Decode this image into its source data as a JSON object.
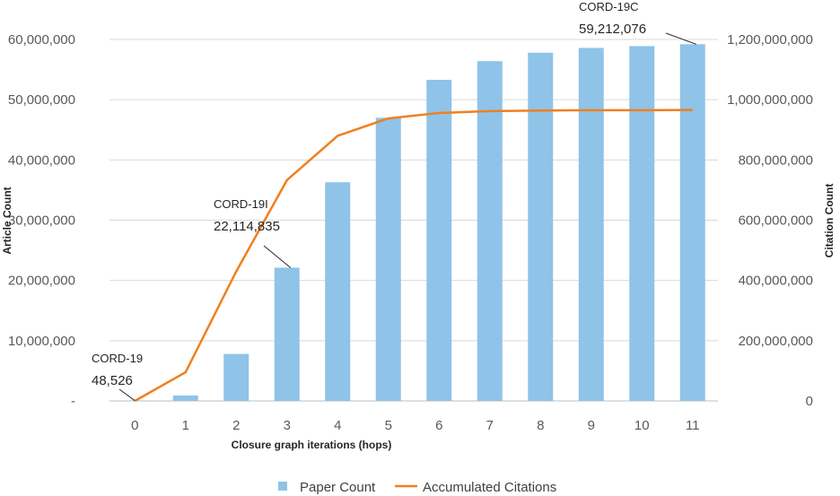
{
  "chart_data": {
    "type": "bar",
    "categories": [
      "0",
      "1",
      "2",
      "3",
      "4",
      "5",
      "6",
      "7",
      "8",
      "9",
      "10",
      "11"
    ],
    "series": [
      {
        "name": "Paper Count",
        "type": "bar",
        "axis": "left",
        "color": "#8fc3e8",
        "values": [
          48526,
          900000,
          7800000,
          22114835,
          36300000,
          47000000,
          53300000,
          56400000,
          57800000,
          58600000,
          58900000,
          59212076
        ]
      },
      {
        "name": "Accumulated Citations",
        "type": "line",
        "axis": "right",
        "color": "#f07f1f",
        "values": [
          0,
          95000000,
          430000000,
          733000000,
          880000000,
          938000000,
          956000000,
          962000000,
          964000000,
          965000000,
          965000000,
          966000000
        ]
      }
    ],
    "xlabel": "Closure graph iterations (hops)",
    "ylabel": "Article Count",
    "y2label": "Citation Count",
    "ylim": [
      0,
      60000000
    ],
    "y2lim": [
      0,
      1200000000
    ],
    "yticks": [
      0,
      10000000,
      20000000,
      30000000,
      40000000,
      50000000,
      60000000
    ],
    "ytick_labels": [
      "-",
      "10,000,000",
      "20,000,000",
      "30,000,000",
      "40,000,000",
      "50,000,000",
      "60,000,000"
    ],
    "y2ticks": [
      0,
      200000000,
      400000000,
      600000000,
      800000000,
      1000000000,
      1200000000
    ],
    "y2tick_labels": [
      "0",
      "200,000,000",
      "400,000,000",
      "600,000,000",
      "800,000,000",
      "1,000,000,000",
      "1,200,000,000"
    ],
    "grid": true,
    "legend_position": "bottom",
    "annotations": [
      {
        "name": "CORD-19",
        "value": "48,526",
        "category": "0"
      },
      {
        "name": "CORD-19I",
        "value": "22,114,835",
        "category": "3"
      },
      {
        "name": "CORD-19C",
        "value": "59,212,076",
        "category": "11"
      }
    ]
  }
}
